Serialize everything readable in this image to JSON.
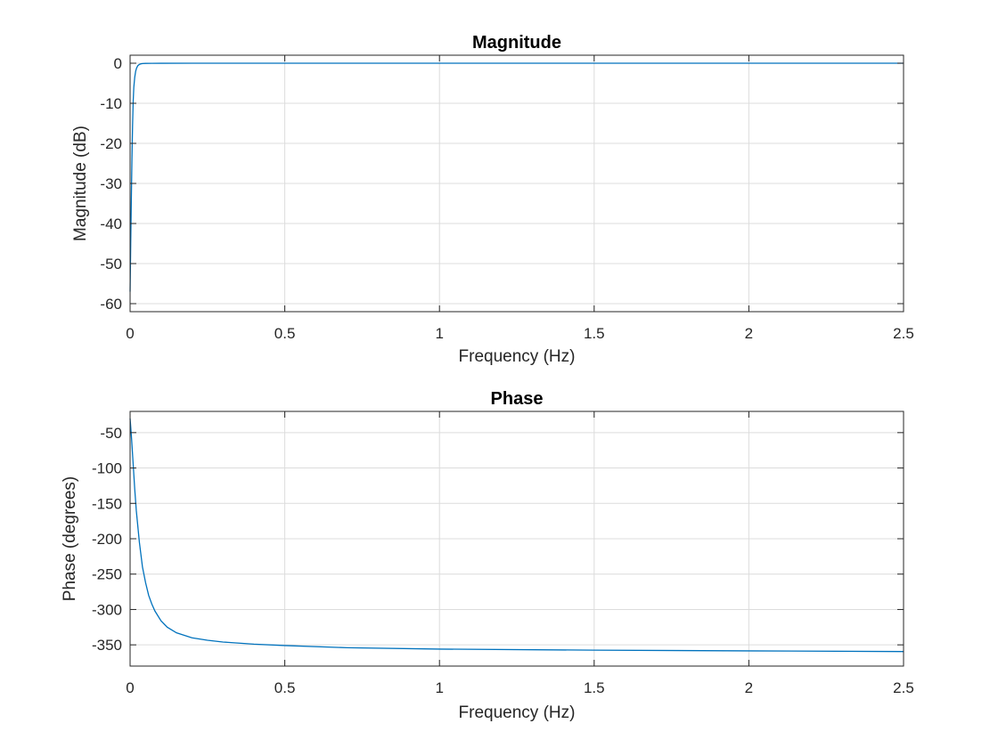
{
  "chart_data": [
    {
      "type": "line",
      "title": "Magnitude",
      "xlabel": "Frequency (Hz)",
      "ylabel": "Magnitude (dB)",
      "xlim": [
        0,
        2.5
      ],
      "ylim": [
        -62,
        2
      ],
      "xticks": [
        0,
        0.5,
        1,
        1.5,
        2,
        2.5
      ],
      "xtick_labels": [
        "0",
        "0.5",
        "1",
        "1.5",
        "2",
        "2.5"
      ],
      "yticks": [
        0,
        -10,
        -20,
        -30,
        -40,
        -50,
        -60
      ],
      "ytick_labels": [
        "0",
        "-10",
        "-20",
        "-30",
        "-40",
        "-50",
        "-60"
      ],
      "grid": true,
      "color": "#0072bd",
      "series": [
        {
          "x": [
            0,
            0.002,
            0.004,
            0.006,
            0.008,
            0.01,
            0.012,
            0.015,
            0.018,
            0.021,
            0.025,
            0.03,
            0.035,
            0.04,
            0.05,
            0.07,
            0.1,
            0.2,
            0.5,
            1,
            1.5,
            2,
            2.5
          ],
          "values": [
            -57,
            -45,
            -34,
            -24,
            -15.5,
            -9.5,
            -6,
            -3.5,
            -2,
            -1.2,
            -0.6,
            -0.3,
            -0.15,
            -0.08,
            -0.04,
            -0.02,
            -0.01,
            0,
            0,
            0,
            0,
            0,
            0
          ]
        }
      ]
    },
    {
      "type": "line",
      "title": "Phase",
      "xlabel": "Frequency (Hz)",
      "ylabel": "Phase (degrees)",
      "xlim": [
        0,
        2.5
      ],
      "ylim": [
        -380,
        -20
      ],
      "xticks": [
        0,
        0.5,
        1,
        1.5,
        2,
        2.5
      ],
      "xtick_labels": [
        "0",
        "0.5",
        "1",
        "1.5",
        "2",
        "2.5"
      ],
      "yticks": [
        -50,
        -100,
        -150,
        -200,
        -250,
        -300,
        -350
      ],
      "ytick_labels": [
        "-50",
        "-100",
        "-150",
        "-200",
        "-250",
        "-300",
        "-350"
      ],
      "grid": true,
      "color": "#0072bd",
      "series": [
        {
          "x": [
            0,
            0.005,
            0.01,
            0.015,
            0.02,
            0.03,
            0.04,
            0.05,
            0.06,
            0.07,
            0.08,
            0.1,
            0.12,
            0.15,
            0.2,
            0.25,
            0.3,
            0.4,
            0.5,
            0.7,
            1,
            1.5,
            2,
            2.5
          ],
          "values": [
            -30,
            -60,
            -95,
            -130,
            -160,
            -205,
            -240,
            -262,
            -280,
            -292,
            -302,
            -316,
            -325,
            -333,
            -340,
            -343.5,
            -346,
            -349,
            -351,
            -354,
            -356,
            -357.5,
            -358.5,
            -359.5
          ]
        }
      ]
    }
  ]
}
